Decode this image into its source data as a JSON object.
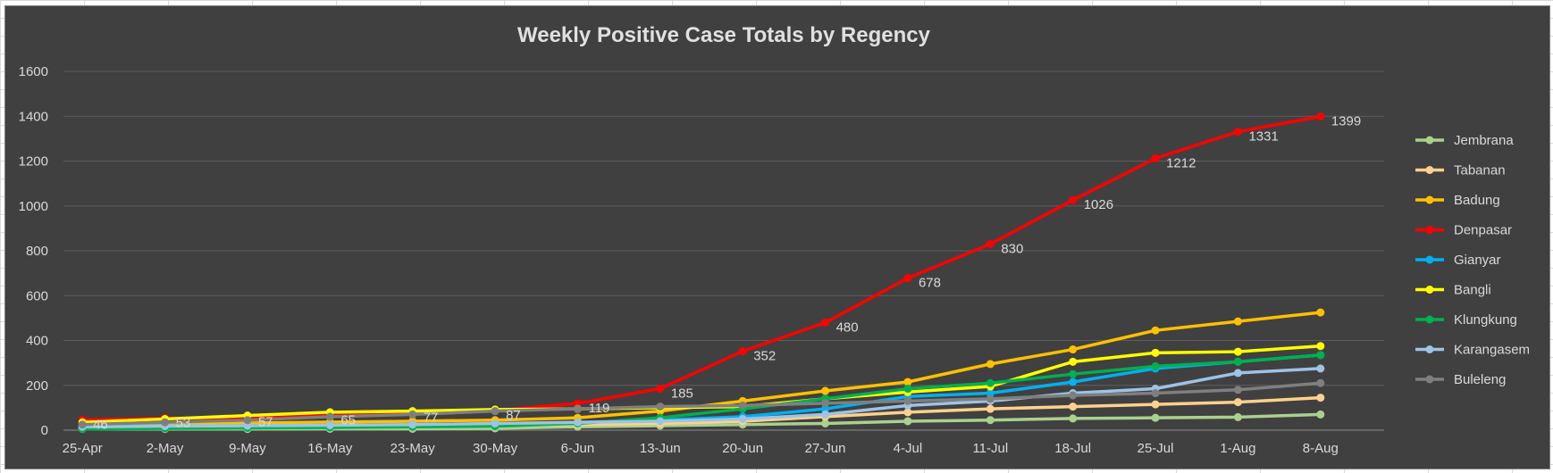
{
  "chart_data": {
    "type": "line",
    "title": "Weekly Positive Case Totals by Regency",
    "xlabel": "",
    "ylabel": "",
    "ylim": [
      0,
      1600
    ],
    "yticks": [
      0,
      200,
      400,
      600,
      800,
      1000,
      1200,
      1400,
      1600
    ],
    "grid": true,
    "legend_position": "right",
    "categories": [
      "25-Apr",
      "2-May",
      "9-May",
      "16-May",
      "23-May",
      "30-May",
      "6-Jun",
      "13-Jun",
      "20-Jun",
      "27-Jun",
      "4-Jul",
      "11-Jul",
      "18-Jul",
      "25-Jul",
      "1-Aug",
      "8-Aug"
    ],
    "series": [
      {
        "name": "Jembrana",
        "color": "#a9d18e",
        "values": [
          5,
          5,
          5,
          6,
          6,
          8,
          15,
          20,
          25,
          30,
          40,
          45,
          52,
          55,
          58,
          70
        ]
      },
      {
        "name": "Tabanan",
        "color": "#ffd18c",
        "values": [
          10,
          12,
          14,
          15,
          18,
          20,
          25,
          30,
          40,
          60,
          80,
          95,
          105,
          115,
          125,
          145
        ]
      },
      {
        "name": "Badung",
        "color": "#ffc000",
        "values": [
          20,
          28,
          32,
          36,
          40,
          45,
          55,
          85,
          130,
          175,
          215,
          295,
          360,
          445,
          485,
          525
        ]
      },
      {
        "name": "Denpasar",
        "color": "#ff0000",
        "values": [
          46,
          53,
          57,
          65,
          77,
          87,
          119,
          185,
          352,
          480,
          678,
          830,
          1026,
          1212,
          1331,
          1399
        ],
        "labels": true
      },
      {
        "name": "Gianyar",
        "color": "#00b0f0",
        "values": [
          15,
          18,
          20,
          22,
          25,
          28,
          35,
          45,
          60,
          95,
          150,
          165,
          215,
          275,
          305,
          335
        ]
      },
      {
        "name": "Bangli",
        "color": "#ffff00",
        "values": [
          35,
          50,
          65,
          80,
          85,
          92,
          95,
          100,
          105,
          140,
          170,
          195,
          305,
          345,
          350,
          375
        ]
      },
      {
        "name": "Klungkung",
        "color": "#00b050",
        "values": [
          5,
          8,
          10,
          12,
          15,
          18,
          30,
          55,
          95,
          140,
          185,
          210,
          250,
          285,
          305,
          335
        ]
      },
      {
        "name": "Karangasem",
        "color": "#9dc3e6",
        "values": [
          15,
          18,
          20,
          22,
          25,
          30,
          35,
          40,
          50,
          70,
          110,
          130,
          165,
          185,
          255,
          275
        ]
      },
      {
        "name": "Buleleng",
        "color": "#7f7f7f",
        "values": [
          25,
          35,
          45,
          60,
          70,
          85,
          95,
          105,
          110,
          120,
          130,
          140,
          155,
          165,
          180,
          210
        ]
      }
    ]
  }
}
